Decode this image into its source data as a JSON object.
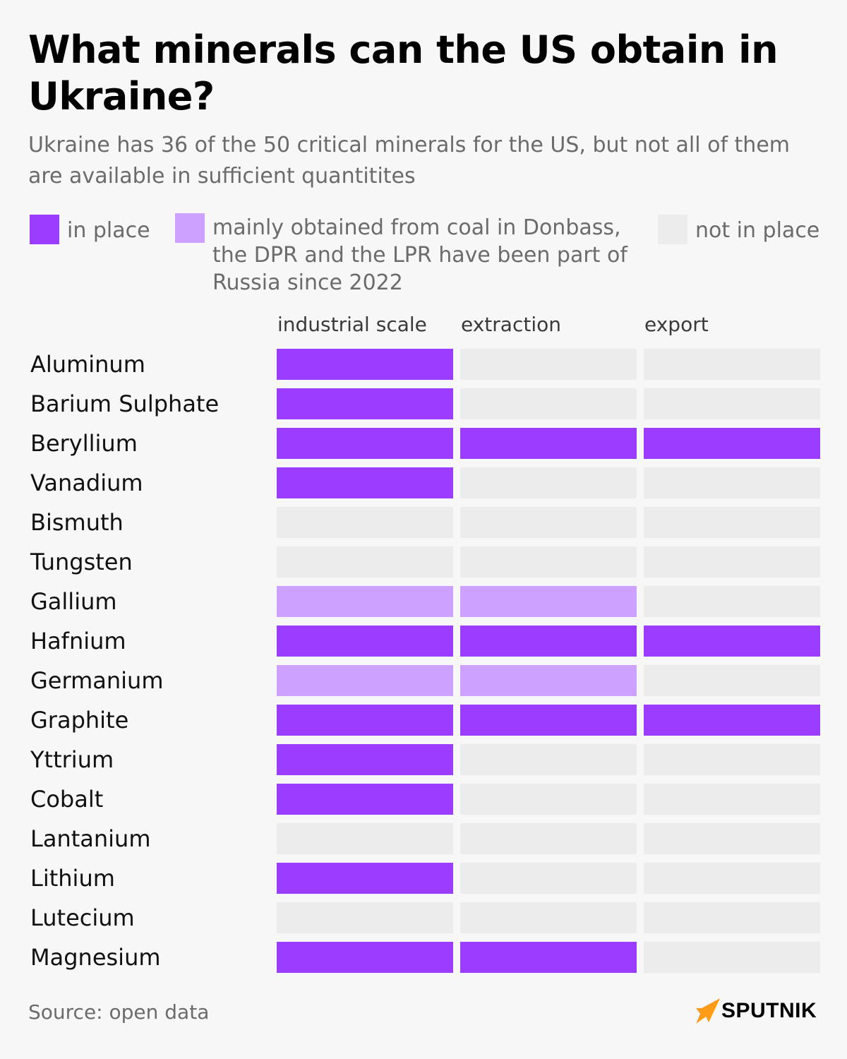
{
  "title": "What minerals can the US obtain in Ukraine?",
  "subtitle": "Ukraine has 36 of the 50 critical minerals for the US, but not all of them are available in sufficient quantitites",
  "colors": {
    "in_place": "#9b3dff",
    "coal_donbass": "#cca1ff",
    "not_in_place": "#ececec",
    "background": "#f7f7f7"
  },
  "legend": [
    {
      "key": "in_place",
      "label": "in place"
    },
    {
      "key": "coal_donbass",
      "label": "mainly obtained from coal in Donbass, the DPR and the LPR have been part of Russia since 2022"
    },
    {
      "key": "not_in_place",
      "label": "not in place"
    }
  ],
  "chart_data": {
    "type": "table",
    "columns": [
      "industrial scale",
      "extraction",
      "export"
    ],
    "rows": [
      {
        "name": "Aluminum",
        "values": [
          "in_place",
          "not_in_place",
          "not_in_place"
        ]
      },
      {
        "name": "Barium Sulphate",
        "values": [
          "in_place",
          "not_in_place",
          "not_in_place"
        ]
      },
      {
        "name": "Beryllium",
        "values": [
          "in_place",
          "in_place",
          "in_place"
        ]
      },
      {
        "name": "Vanadium",
        "values": [
          "in_place",
          "not_in_place",
          "not_in_place"
        ]
      },
      {
        "name": "Bismuth",
        "values": [
          "not_in_place",
          "not_in_place",
          "not_in_place"
        ]
      },
      {
        "name": "Tungsten",
        "values": [
          "not_in_place",
          "not_in_place",
          "not_in_place"
        ]
      },
      {
        "name": "Gallium",
        "values": [
          "coal_donbass",
          "coal_donbass",
          "not_in_place"
        ]
      },
      {
        "name": "Hafnium",
        "values": [
          "in_place",
          "in_place",
          "in_place"
        ]
      },
      {
        "name": "Germanium",
        "values": [
          "coal_donbass",
          "coal_donbass",
          "not_in_place"
        ]
      },
      {
        "name": "Graphite",
        "values": [
          "in_place",
          "in_place",
          "in_place"
        ]
      },
      {
        "name": "Yttrium",
        "values": [
          "in_place",
          "not_in_place",
          "not_in_place"
        ]
      },
      {
        "name": "Cobalt",
        "values": [
          "in_place",
          "not_in_place",
          "not_in_place"
        ]
      },
      {
        "name": "Lantanium",
        "values": [
          "not_in_place",
          "not_in_place",
          "not_in_place"
        ]
      },
      {
        "name": "Lithium",
        "values": [
          "in_place",
          "not_in_place",
          "not_in_place"
        ]
      },
      {
        "name": "Lutecium",
        "values": [
          "not_in_place",
          "not_in_place",
          "not_in_place"
        ]
      },
      {
        "name": "Magnesium",
        "values": [
          "in_place",
          "in_place",
          "not_in_place"
        ]
      }
    ]
  },
  "source": "Source: open data",
  "logo": {
    "text": "SPUTNIK",
    "mark_color": "#ff9b17"
  }
}
